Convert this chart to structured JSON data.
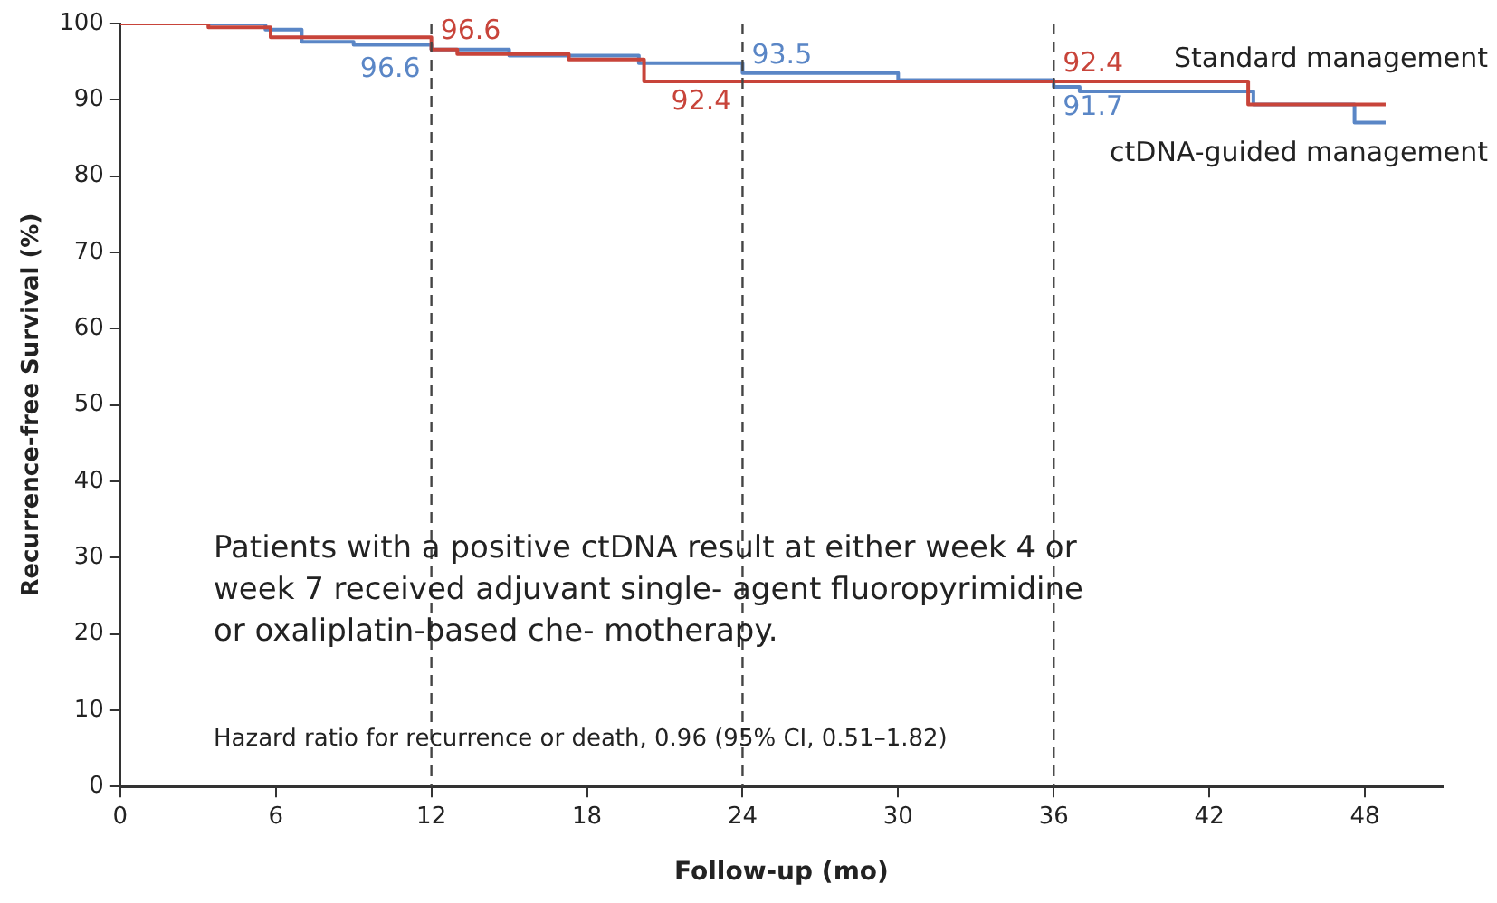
{
  "chart_data": {
    "type": "step",
    "xlabel": "Follow-up (mo)",
    "ylabel": "Recurrence-free Survival (%)",
    "xlim": [
      0,
      51
    ],
    "xticks": [
      0,
      6,
      12,
      18,
      24,
      30,
      36,
      42,
      48
    ],
    "ylim": [
      0,
      100
    ],
    "yticks": [
      0,
      10,
      20,
      30,
      40,
      50,
      60,
      70,
      80,
      90,
      100
    ],
    "marker": "none",
    "line_style": "solid",
    "series": [
      {
        "name": "Standard management",
        "color": "#c8443a",
        "x": [
          0,
          3.4,
          5.8,
          12,
          13,
          17.3,
          20.2,
          36,
          43.5,
          48.8
        ],
        "values": [
          100,
          99.5,
          98.2,
          96.6,
          96,
          95.3,
          92.4,
          92.4,
          89.4,
          89.4
        ]
      },
      {
        "name": "ctDNA-guided management",
        "color": "#5a86c6",
        "x": [
          0,
          5.6,
          7,
          9,
          12,
          15,
          20,
          24,
          30,
          36,
          37,
          43.7,
          47.6,
          48.8
        ],
        "values": [
          100,
          99.2,
          97.6,
          97.2,
          96.6,
          95.8,
          94.8,
          93.5,
          92.6,
          91.7,
          91.1,
          89.4,
          87,
          87
        ]
      }
    ],
    "ref_lines": [
      {
        "axis": "x",
        "value": 12,
        "line_style": "dashed",
        "color": "#444444"
      },
      {
        "axis": "x",
        "value": 24,
        "line_style": "dashed",
        "color": "#444444"
      },
      {
        "axis": "x",
        "value": 36,
        "line_style": "dashed",
        "color": "#444444"
      }
    ],
    "annotations": [
      {
        "text": "96.6",
        "x": 12,
        "y": 96.6
      },
      {
        "text": "96.6",
        "x": 12,
        "y": 96.6
      },
      {
        "text": "93.5",
        "x": 24,
        "y": 93.5
      },
      {
        "text": "92.4",
        "x": 24,
        "y": 92.4
      },
      {
        "text": "92.4",
        "x": 36,
        "y": 92.4
      },
      {
        "text": "91.7",
        "x": 36,
        "y": 91.7
      },
      "Patients with a positive ctDNA result at either week 4 or week 7 received adjuvant single- agent fluoropyrimidine or oxaliplatin-based che- motherapy.",
      "Hazard ratio for recurrence or death, 0.96 (95% CI, 0.51–1.82)"
    ]
  }
}
